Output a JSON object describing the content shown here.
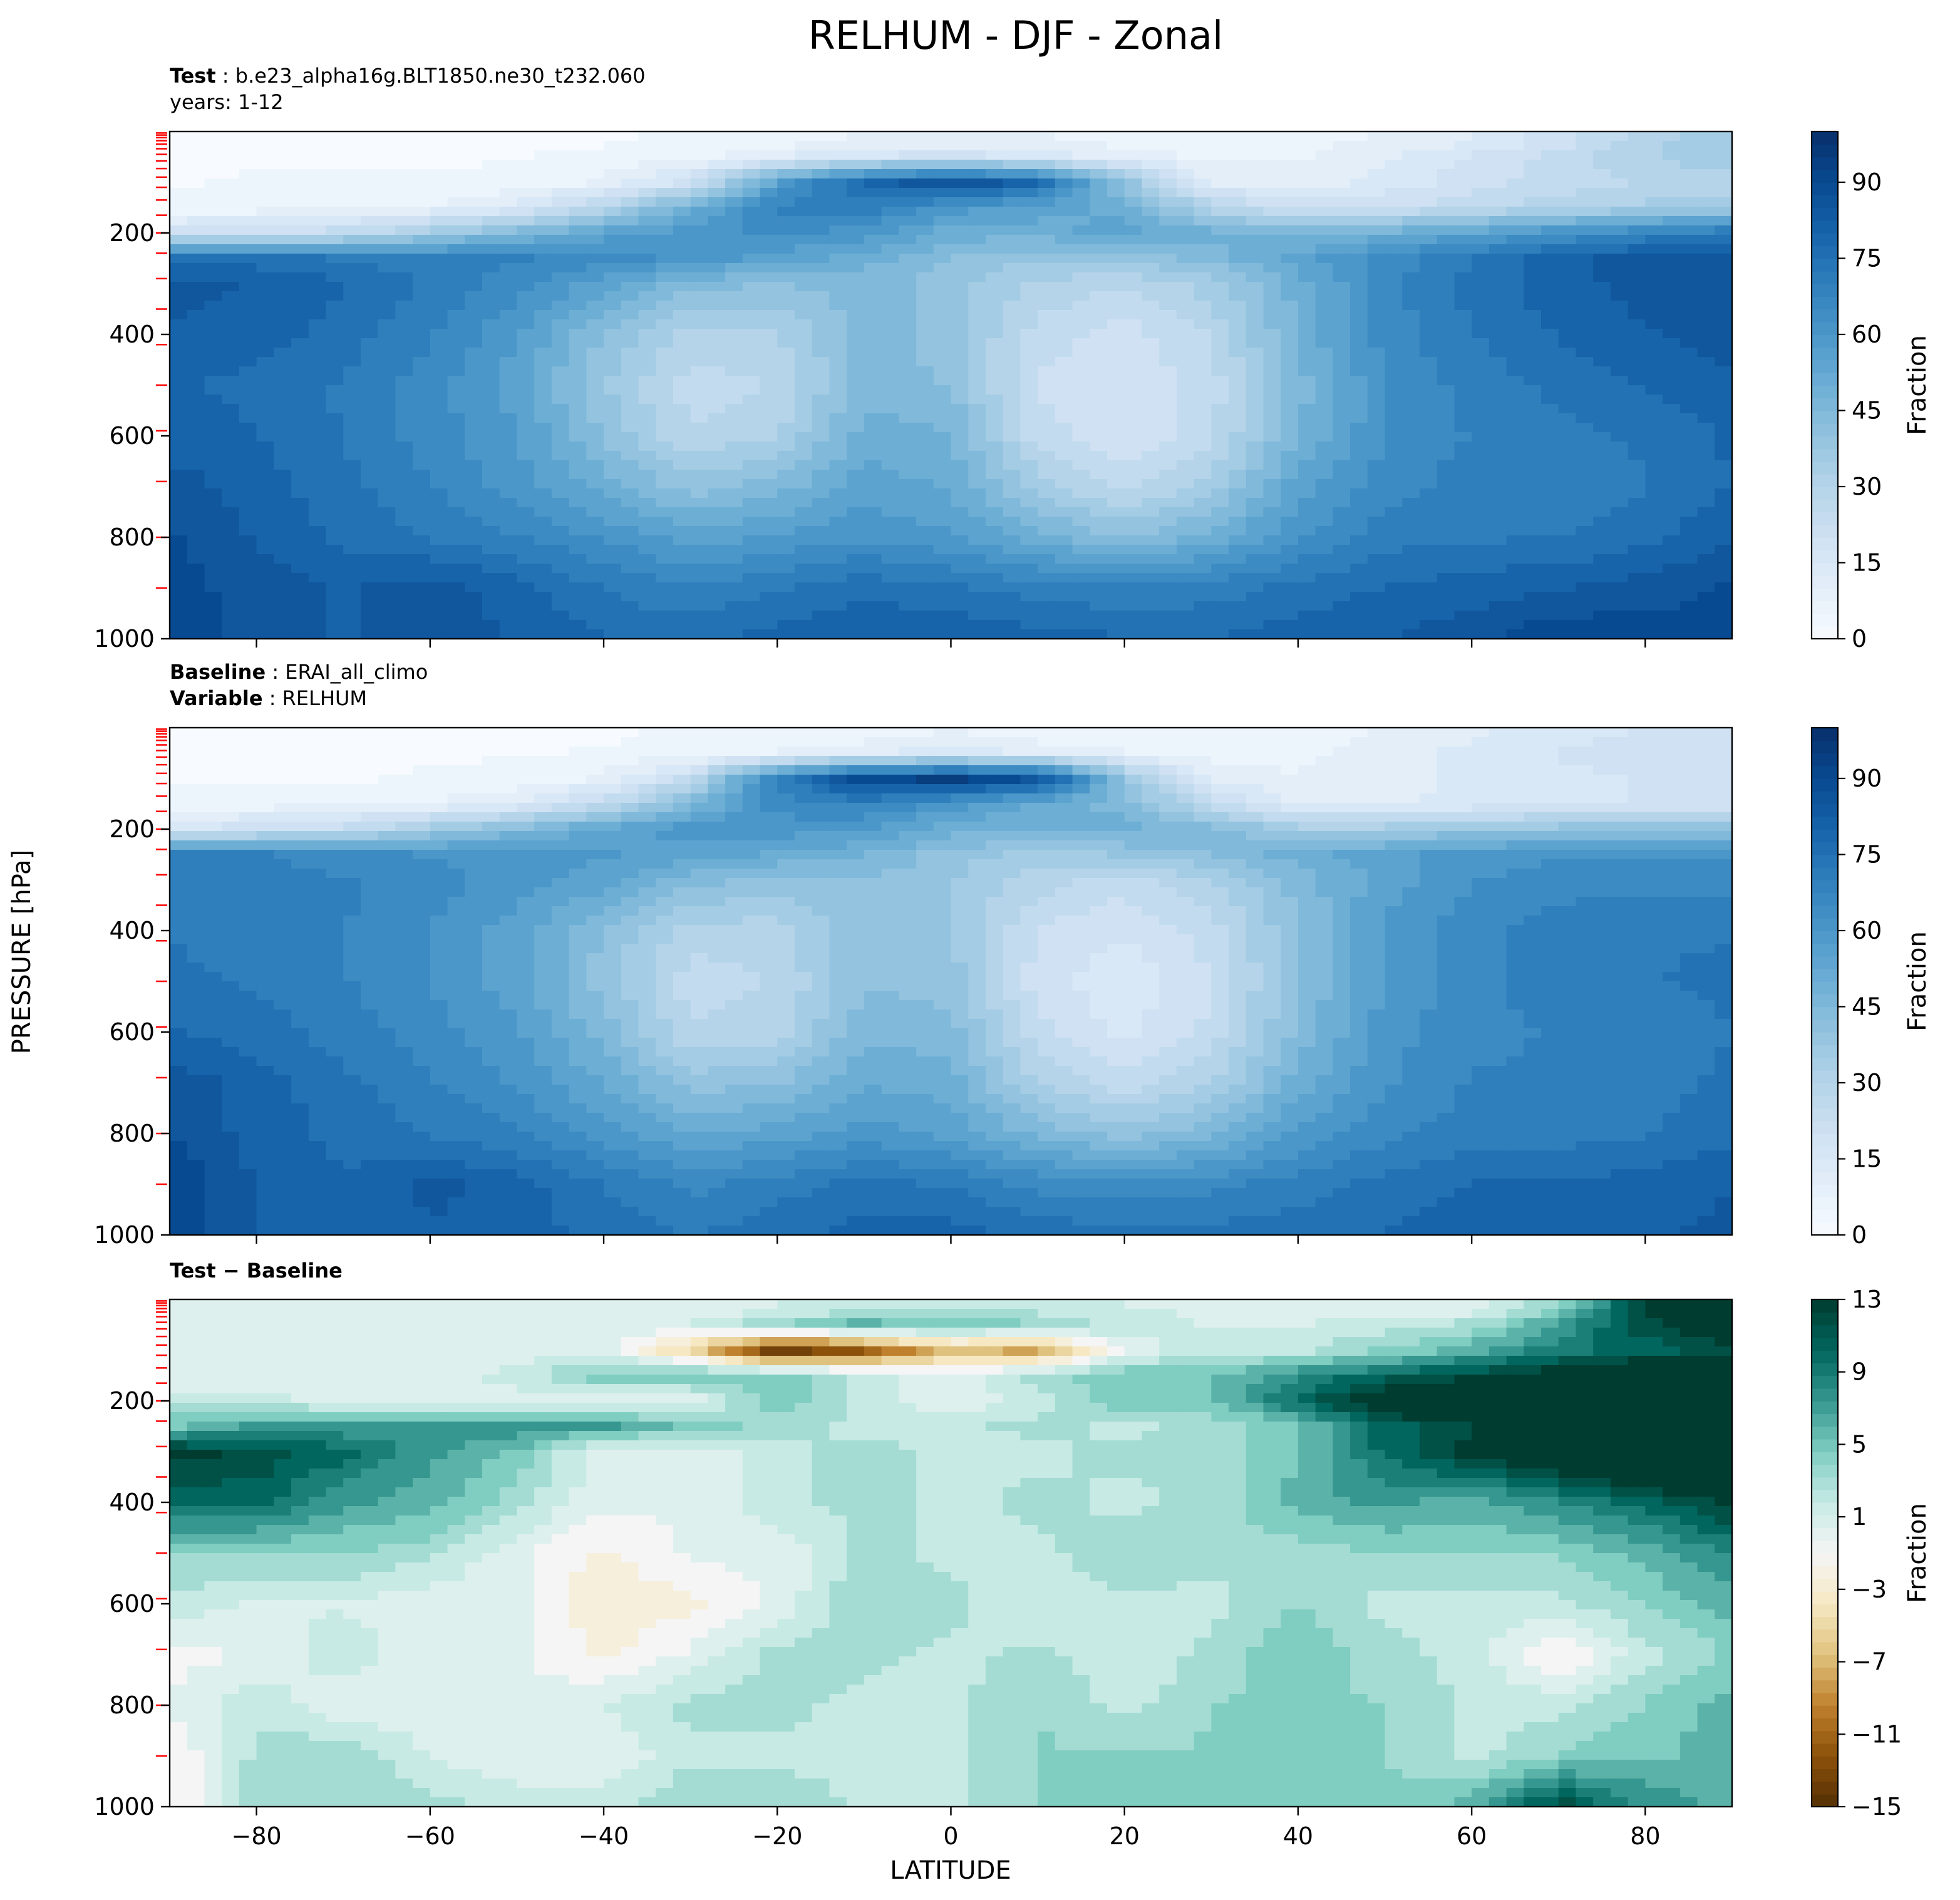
{
  "figure": {
    "title": "RELHUM - DJF - Zonal",
    "xlabel": "LATITUDE",
    "ylabel": "PRESSURE [hPa]"
  },
  "colors": {
    "blues": [
      "#f7fbff",
      "#e3eef9",
      "#cfe1f2",
      "#b5d4e9",
      "#93c3df",
      "#6daed5",
      "#4b97c9",
      "#2f7fbc",
      "#1764ab",
      "#084a91",
      "#08306b"
    ],
    "brbg": [
      "#543005",
      "#8c510a",
      "#bf812d",
      "#dfc27d",
      "#f6e8c3",
      "#f5f5f5",
      "#c7eae5",
      "#80cdc1",
      "#35978f",
      "#01665e",
      "#003c30"
    ],
    "tick_marker": "#ff0000"
  },
  "chart_data": [
    {
      "type": "contourf",
      "name": "test",
      "subtitle_lines": [
        {
          "bold": "Test",
          "text": ": b.e23_alpha16g.BLT1850.ne30_t232.060"
        },
        {
          "bold": "",
          "text": "years: 1-12"
        }
      ],
      "xlim": [
        -90,
        90
      ],
      "ylim": [
        1000,
        0
      ],
      "x_ticks": [
        -80,
        -60,
        -40,
        -20,
        0,
        20,
        40,
        60,
        80
      ],
      "y_ticks": [
        200,
        400,
        600,
        800,
        1000
      ],
      "x_tick_labels_shown": false,
      "colorbar": {
        "label": "Fraction",
        "ticks": [
          0,
          15,
          30,
          45,
          60,
          75,
          90
        ],
        "range": [
          0,
          100
        ],
        "cmap": "blues"
      },
      "lat": [
        -90,
        -80,
        -70,
        -60,
        -50,
        -40,
        -30,
        -20,
        -10,
        0,
        10,
        20,
        30,
        40,
        50,
        60,
        70,
        80,
        90
      ],
      "lev": [
        20,
        50,
        100,
        150,
        200,
        250,
        300,
        400,
        500,
        600,
        700,
        800,
        900,
        1000
      ],
      "values": [
        [
          2,
          2,
          2,
          2,
          2,
          2,
          3,
          5,
          8,
          10,
          8,
          6,
          5,
          6,
          8,
          12,
          20,
          30,
          38
        ],
        [
          2,
          2,
          2,
          2,
          2,
          4,
          6,
          12,
          18,
          20,
          16,
          10,
          6,
          7,
          12,
          18,
          25,
          32,
          36
        ],
        [
          2,
          3,
          3,
          3,
          4,
          8,
          20,
          55,
          80,
          88,
          80,
          40,
          12,
          10,
          14,
          20,
          25,
          28,
          30
        ],
        [
          4,
          5,
          6,
          8,
          14,
          30,
          50,
          70,
          70,
          60,
          55,
          50,
          30,
          20,
          22,
          26,
          30,
          34,
          36
        ],
        [
          20,
          22,
          25,
          35,
          45,
          55,
          60,
          65,
          60,
          50,
          50,
          55,
          50,
          45,
          50,
          55,
          62,
          68,
          72
        ],
        [
          75,
          75,
          72,
          70,
          68,
          65,
          60,
          55,
          50,
          42,
          38,
          40,
          45,
          55,
          65,
          72,
          80,
          85,
          85
        ],
        [
          85,
          82,
          78,
          72,
          65,
          55,
          45,
          42,
          45,
          40,
          32,
          28,
          35,
          50,
          65,
          75,
          80,
          85,
          85
        ],
        [
          82,
          80,
          75,
          68,
          58,
          42,
          30,
          32,
          45,
          40,
          25,
          20,
          28,
          48,
          65,
          72,
          78,
          82,
          85
        ],
        [
          78,
          76,
          72,
          65,
          55,
          38,
          25,
          28,
          45,
          42,
          22,
          18,
          25,
          45,
          62,
          70,
          74,
          78,
          82
        ],
        [
          80,
          78,
          72,
          65,
          58,
          42,
          28,
          32,
          50,
          48,
          25,
          18,
          26,
          48,
          62,
          68,
          70,
          74,
          78
        ],
        [
          85,
          80,
          74,
          68,
          60,
          50,
          40,
          45,
          55,
          52,
          35,
          25,
          35,
          55,
          65,
          70,
          68,
          72,
          78
        ],
        [
          88,
          82,
          76,
          72,
          68,
          62,
          55,
          58,
          62,
          58,
          50,
          42,
          50,
          62,
          70,
          72,
          72,
          76,
          82
        ],
        [
          90,
          85,
          82,
          85,
          80,
          72,
          68,
          72,
          76,
          74,
          70,
          68,
          70,
          74,
          78,
          80,
          82,
          85,
          88
        ],
        [
          90,
          85,
          82,
          85,
          82,
          78,
          76,
          80,
          82,
          82,
          80,
          78,
          78,
          80,
          82,
          86,
          92,
          90,
          90
        ]
      ]
    },
    {
      "type": "contourf",
      "name": "baseline",
      "subtitle_lines": [
        {
          "bold": "Baseline",
          "text": ": ERAI_all_climo"
        },
        {
          "bold": "Variable",
          "text": ": RELHUM"
        }
      ],
      "xlim": [
        -90,
        90
      ],
      "ylim": [
        1000,
        0
      ],
      "x_ticks": [
        -80,
        -60,
        -40,
        -20,
        0,
        20,
        40,
        60,
        80
      ],
      "y_ticks": [
        200,
        400,
        600,
        800,
        1000
      ],
      "x_tick_labels_shown": false,
      "colorbar": {
        "label": "Fraction",
        "ticks": [
          0,
          15,
          30,
          45,
          60,
          75,
          90
        ],
        "range": [
          0,
          100
        ],
        "cmap": "blues"
      },
      "lat": [
        -90,
        -80,
        -70,
        -60,
        -50,
        -40,
        -30,
        -20,
        -10,
        0,
        10,
        20,
        30,
        40,
        50,
        60,
        70,
        80,
        90
      ],
      "lev": [
        20,
        50,
        100,
        150,
        200,
        250,
        300,
        400,
        500,
        600,
        700,
        800,
        900,
        1000
      ],
      "values": [
        [
          2,
          2,
          2,
          2,
          2,
          2,
          3,
          4,
          6,
          8,
          6,
          5,
          4,
          5,
          8,
          12,
          16,
          18,
          20
        ],
        [
          2,
          2,
          2,
          2,
          2,
          3,
          5,
          8,
          12,
          15,
          12,
          8,
          5,
          6,
          10,
          15,
          18,
          20,
          22
        ],
        [
          2,
          2,
          2,
          3,
          4,
          8,
          25,
          70,
          92,
          95,
          88,
          40,
          10,
          8,
          10,
          14,
          16,
          18,
          18
        ],
        [
          4,
          5,
          6,
          8,
          12,
          25,
          45,
          65,
          68,
          60,
          52,
          45,
          25,
          12,
          12,
          14,
          16,
          18,
          18
        ],
        [
          18,
          20,
          25,
          35,
          45,
          55,
          60,
          60,
          58,
          50,
          48,
          50,
          45,
          35,
          35,
          38,
          40,
          42,
          42
        ],
        [
          70,
          68,
          65,
          62,
          60,
          58,
          55,
          52,
          48,
          40,
          35,
          38,
          42,
          50,
          55,
          60,
          62,
          62,
          62
        ],
        [
          72,
          70,
          68,
          65,
          60,
          55,
          45,
          40,
          42,
          38,
          30,
          25,
          32,
          45,
          55,
          62,
          65,
          66,
          66
        ],
        [
          72,
          70,
          68,
          62,
          55,
          42,
          30,
          30,
          42,
          38,
          22,
          18,
          25,
          42,
          58,
          66,
          70,
          72,
          72
        ],
        [
          74,
          72,
          68,
          62,
          55,
          40,
          25,
          28,
          42,
          40,
          20,
          14,
          22,
          42,
          58,
          66,
          70,
          72,
          74
        ],
        [
          78,
          75,
          70,
          65,
          58,
          45,
          28,
          30,
          46,
          45,
          24,
          16,
          24,
          44,
          60,
          66,
          68,
          70,
          72
        ],
        [
          86,
          80,
          74,
          68,
          62,
          52,
          40,
          42,
          52,
          50,
          32,
          24,
          32,
          50,
          62,
          68,
          68,
          70,
          74
        ],
        [
          88,
          80,
          76,
          72,
          68,
          60,
          52,
          55,
          60,
          56,
          46,
          40,
          46,
          58,
          66,
          70,
          70,
          72,
          76
        ],
        [
          92,
          82,
          78,
          84,
          80,
          72,
          66,
          70,
          74,
          72,
          66,
          64,
          66,
          70,
          74,
          78,
          78,
          80,
          82
        ],
        [
          92,
          82,
          78,
          82,
          80,
          76,
          72,
          76,
          80,
          80,
          76,
          74,
          74,
          76,
          78,
          80,
          80,
          82,
          84
        ]
      ]
    },
    {
      "type": "contourf",
      "name": "difference",
      "subtitle_lines": [
        {
          "bold": "Test − Baseline",
          "text": ""
        }
      ],
      "xlim": [
        -90,
        90
      ],
      "ylim": [
        1000,
        0
      ],
      "x_ticks": [
        -80,
        -60,
        -40,
        -20,
        0,
        20,
        40,
        60,
        80
      ],
      "y_ticks": [
        200,
        400,
        600,
        800,
        1000
      ],
      "x_tick_labels_shown": true,
      "colorbar": {
        "label": "Fraction",
        "ticks": [
          -15,
          -11,
          -7,
          -3,
          1,
          5,
          9,
          13
        ],
        "range": [
          -15,
          13
        ],
        "cmap": "brbg"
      },
      "lat": [
        -90,
        -80,
        -70,
        -60,
        -50,
        -40,
        -30,
        -20,
        -10,
        0,
        10,
        20,
        30,
        40,
        50,
        60,
        70,
        80,
        90
      ],
      "lev": [
        20,
        50,
        100,
        150,
        200,
        250,
        300,
        400,
        500,
        600,
        700,
        800,
        900,
        1000
      ],
      "values": [
        [
          0,
          0,
          0,
          0,
          0,
          0,
          0,
          1,
          2,
          2,
          2,
          1,
          1,
          1,
          0,
          0,
          4,
          12,
          18
        ],
        [
          0,
          0,
          0,
          0,
          0,
          1,
          1,
          4,
          6,
          5,
          4,
          2,
          1,
          1,
          2,
          3,
          7,
          12,
          14
        ],
        [
          0,
          1,
          1,
          0,
          0,
          0,
          -5,
          -15,
          -12,
          -7,
          -8,
          0,
          2,
          2,
          4,
          6,
          9,
          10,
          12
        ],
        [
          0,
          0,
          0,
          0,
          2,
          5,
          5,
          5,
          2,
          0,
          3,
          5,
          5,
          8,
          10,
          12,
          14,
          16,
          18
        ],
        [
          2,
          2,
          0,
          0,
          0,
          0,
          0,
          5,
          2,
          0,
          2,
          5,
          5,
          10,
          15,
          17,
          22,
          26,
          30
        ],
        [
          5,
          7,
          7,
          8,
          8,
          7,
          5,
          3,
          2,
          2,
          3,
          2,
          3,
          5,
          10,
          12,
          18,
          23,
          23
        ],
        [
          13,
          12,
          10,
          7,
          5,
          0,
          0,
          2,
          3,
          2,
          2,
          3,
          3,
          5,
          10,
          13,
          15,
          19,
          19
        ],
        [
          10,
          10,
          7,
          6,
          3,
          0,
          0,
          2,
          3,
          2,
          3,
          2,
          3,
          6,
          7,
          6,
          8,
          10,
          13
        ],
        [
          4,
          4,
          4,
          3,
          0,
          -2,
          0,
          0,
          3,
          2,
          2,
          4,
          3,
          3,
          4,
          4,
          4,
          6,
          8
        ],
        [
          2,
          1,
          1,
          0,
          0,
          -3,
          -2,
          0,
          4,
          3,
          1,
          2,
          2,
          4,
          2,
          2,
          2,
          4,
          6
        ],
        [
          -1,
          0,
          2,
          0,
          0,
          -2,
          0,
          3,
          3,
          2,
          3,
          1,
          3,
          5,
          3,
          2,
          -2,
          2,
          4
        ],
        [
          0,
          2,
          0,
          0,
          0,
          1,
          3,
          3,
          2,
          2,
          4,
          2,
          4,
          4,
          4,
          2,
          2,
          4,
          6
        ],
        [
          -2,
          3,
          4,
          1,
          0,
          0,
          2,
          2,
          2,
          2,
          4,
          4,
          4,
          4,
          4,
          2,
          4,
          5,
          6
        ],
        [
          -2,
          3,
          4,
          3,
          2,
          2,
          4,
          4,
          2,
          2,
          4,
          4,
          4,
          4,
          4,
          6,
          12,
          8,
          6
        ]
      ]
    }
  ]
}
